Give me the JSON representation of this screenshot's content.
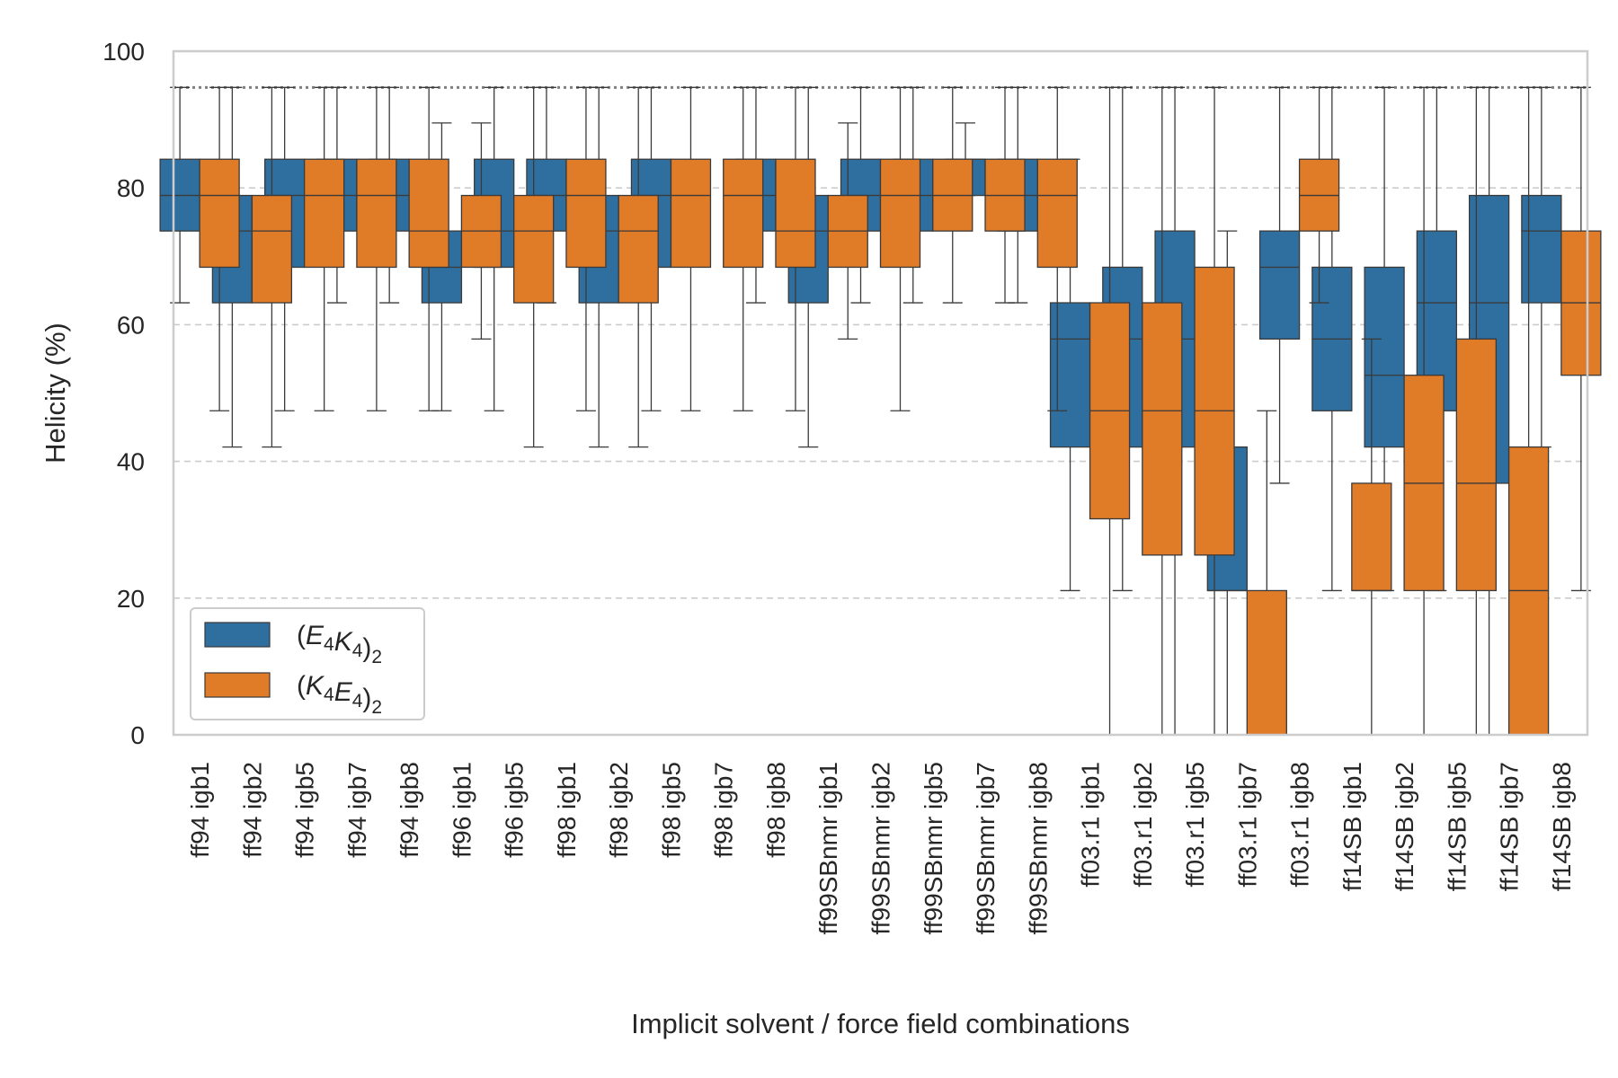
{
  "chart_data": {
    "type": "box",
    "xlabel": "Implicit solvent / force field combinations",
    "ylabel": "Helicity (%)",
    "ylim": [
      0,
      100
    ],
    "yticks": [
      0,
      20,
      40,
      60,
      80,
      100
    ],
    "grid": "horizontal dashed",
    "reference_line": 94.7,
    "legend_position": "lower-left",
    "categories": [
      "ff94 igb1",
      "ff94 igb2",
      "ff94 igb5",
      "ff94 igb7",
      "ff94 igb8",
      "ff96 igb1",
      "ff96 igb5",
      "ff98 igb1",
      "ff98 igb2",
      "ff98 igb5",
      "ff98 igb7",
      "ff98 igb8",
      "ff99SBnmr igb1",
      "ff99SBnmr igb2",
      "ff99SBnmr igb5",
      "ff99SBnmr igb7",
      "ff99SBnmr igb8",
      "ff03.r1 igb1",
      "ff03.r1 igb2",
      "ff03.r1 igb5",
      "ff03.r1 igb7",
      "ff03.r1 igb8",
      "ff14SB igb1",
      "ff14SB igb2",
      "ff14SB igb5",
      "ff14SB igb7",
      "ff14SB igb8"
    ],
    "series": [
      {
        "name": "(E4K4)2",
        "color": "#2f6f9f",
        "boxes": [
          {
            "wl": 63.2,
            "q1": 73.7,
            "med": 78.9,
            "q3": 84.2,
            "wh": 94.7
          },
          {
            "wl": 42.1,
            "q1": 63.2,
            "med": 73.7,
            "q3": 78.9,
            "wh": 94.7
          },
          {
            "wl": 47.4,
            "q1": 68.4,
            "med": 78.9,
            "q3": 84.2,
            "wh": 94.7
          },
          {
            "wl": 63.2,
            "q1": 73.7,
            "med": 78.9,
            "q3": 84.2,
            "wh": 94.7
          },
          {
            "wl": 63.2,
            "q1": 73.7,
            "med": 78.9,
            "q3": 84.2,
            "wh": 94.7
          },
          {
            "wl": 47.4,
            "q1": 63.2,
            "med": 68.4,
            "q3": 73.7,
            "wh": 89.5
          },
          {
            "wl": 47.4,
            "q1": 68.4,
            "med": 73.7,
            "q3": 84.2,
            "wh": 94.7
          },
          {
            "wl": 63.2,
            "q1": 73.7,
            "med": 78.9,
            "q3": 84.2,
            "wh": 94.7
          },
          {
            "wl": 42.1,
            "q1": 63.2,
            "med": 73.7,
            "q3": 78.9,
            "wh": 94.7
          },
          {
            "wl": 47.4,
            "q1": 68.4,
            "med": 78.9,
            "q3": 84.2,
            "wh": 94.7
          },
          null,
          {
            "wl": 63.2,
            "q1": 73.7,
            "med": 78.9,
            "q3": 84.2,
            "wh": 94.7
          },
          {
            "wl": 42.1,
            "q1": 63.2,
            "med": 73.7,
            "q3": 78.9,
            "wh": 94.7
          },
          {
            "wl": 63.2,
            "q1": 73.7,
            "med": 78.9,
            "q3": 84.2,
            "wh": 94.7
          },
          {
            "wl": 63.2,
            "q1": 73.7,
            "med": 78.9,
            "q3": 84.2,
            "wh": 94.7
          },
          {
            "wl": 78.9,
            "q1": 78.9,
            "med": 84.2,
            "q3": 84.2,
            "wh": 89.5
          },
          {
            "wl": 63.2,
            "q1": 73.7,
            "med": 78.9,
            "q3": 84.2,
            "wh": 94.7
          },
          {
            "wl": 21.1,
            "q1": 42.1,
            "med": 57.9,
            "q3": 63.2,
            "wh": 84.2
          },
          {
            "wl": 21.1,
            "q1": 42.1,
            "med": 57.9,
            "q3": 68.4,
            "wh": 94.7
          },
          {
            "wl": 0.0,
            "q1": 42.1,
            "med": 57.9,
            "q3": 73.7,
            "wh": 94.7
          },
          {
            "wl": 0.0,
            "q1": 21.1,
            "med": 21.1,
            "q3": 42.1,
            "wh": 73.7
          },
          {
            "wl": 36.8,
            "q1": 57.9,
            "med": 68.4,
            "q3": 73.7,
            "wh": 94.7
          },
          {
            "wl": 21.1,
            "q1": 47.4,
            "med": 57.9,
            "q3": 68.4,
            "wh": 94.7
          },
          {
            "wl": 21.1,
            "q1": 42.1,
            "med": 52.6,
            "q3": 68.4,
            "wh": 94.7
          },
          {
            "wl": 21.1,
            "q1": 47.4,
            "med": 63.2,
            "q3": 73.7,
            "wh": 94.7
          },
          {
            "wl": 0.0,
            "q1": 36.8,
            "med": 63.2,
            "q3": 78.9,
            "wh": 94.7
          },
          {
            "wl": 42.1,
            "q1": 63.2,
            "med": 73.7,
            "q3": 78.9,
            "wh": 94.7
          }
        ]
      },
      {
        "name": "(K4E4)2",
        "color": "#e07b28",
        "boxes": [
          {
            "wl": 47.4,
            "q1": 68.4,
            "med": 78.9,
            "q3": 84.2,
            "wh": 94.7
          },
          {
            "wl": 42.1,
            "q1": 63.2,
            "med": 73.7,
            "q3": 78.9,
            "wh": 94.7
          },
          {
            "wl": 47.4,
            "q1": 68.4,
            "med": 78.9,
            "q3": 84.2,
            "wh": 94.7
          },
          {
            "wl": 47.4,
            "q1": 68.4,
            "med": 78.9,
            "q3": 84.2,
            "wh": 94.7
          },
          {
            "wl": 47.4,
            "q1": 68.4,
            "med": 73.7,
            "q3": 84.2,
            "wh": 94.7
          },
          {
            "wl": 57.9,
            "q1": 68.4,
            "med": 73.7,
            "q3": 78.9,
            "wh": 89.5
          },
          {
            "wl": 42.1,
            "q1": 63.2,
            "med": 73.7,
            "q3": 78.9,
            "wh": 94.7
          },
          {
            "wl": 47.4,
            "q1": 68.4,
            "med": 78.9,
            "q3": 84.2,
            "wh": 94.7
          },
          {
            "wl": 42.1,
            "q1": 63.2,
            "med": 73.7,
            "q3": 78.9,
            "wh": 94.7
          },
          {
            "wl": 47.4,
            "q1": 68.4,
            "med": 78.9,
            "q3": 84.2,
            "wh": 94.7
          },
          {
            "wl": 47.4,
            "q1": 68.4,
            "med": 78.9,
            "q3": 84.2,
            "wh": 94.7
          },
          {
            "wl": 47.4,
            "q1": 68.4,
            "med": 73.7,
            "q3": 84.2,
            "wh": 94.7
          },
          {
            "wl": 57.9,
            "q1": 68.4,
            "med": 73.7,
            "q3": 78.9,
            "wh": 89.5
          },
          {
            "wl": 47.4,
            "q1": 68.4,
            "med": 78.9,
            "q3": 84.2,
            "wh": 94.7
          },
          {
            "wl": 63.2,
            "q1": 73.7,
            "med": 78.9,
            "q3": 84.2,
            "wh": 94.7
          },
          {
            "wl": 63.2,
            "q1": 73.7,
            "med": 78.9,
            "q3": 84.2,
            "wh": 94.7
          },
          {
            "wl": 47.4,
            "q1": 68.4,
            "med": 78.9,
            "q3": 84.2,
            "wh": 94.7
          },
          {
            "wl": 0.0,
            "q1": 31.6,
            "med": 47.4,
            "q3": 63.2,
            "wh": 94.7
          },
          {
            "wl": 0.0,
            "q1": 26.3,
            "med": 47.4,
            "q3": 63.2,
            "wh": 94.7
          },
          {
            "wl": 0.0,
            "q1": 26.3,
            "med": 47.4,
            "q3": 68.4,
            "wh": 94.7
          },
          {
            "wl": 0.0,
            "q1": 0.0,
            "med": 0.0,
            "q3": 21.1,
            "wh": 47.4
          },
          {
            "wl": 63.2,
            "q1": 73.7,
            "med": 78.9,
            "q3": 84.2,
            "wh": 94.7
          },
          {
            "wl": 0.0,
            "q1": 21.1,
            "med": 21.1,
            "q3": 36.8,
            "wh": 57.9
          },
          {
            "wl": 0.0,
            "q1": 21.1,
            "med": 36.8,
            "q3": 52.6,
            "wh": 94.7
          },
          {
            "wl": 0.0,
            "q1": 21.1,
            "med": 36.8,
            "q3": 57.9,
            "wh": 94.7
          },
          {
            "wl": 0.0,
            "q1": 0.0,
            "med": 21.1,
            "q3": 42.1,
            "wh": 94.7
          },
          {
            "wl": 21.1,
            "q1": 52.6,
            "med": 63.2,
            "q3": 73.7,
            "wh": 94.7
          }
        ]
      }
    ]
  }
}
